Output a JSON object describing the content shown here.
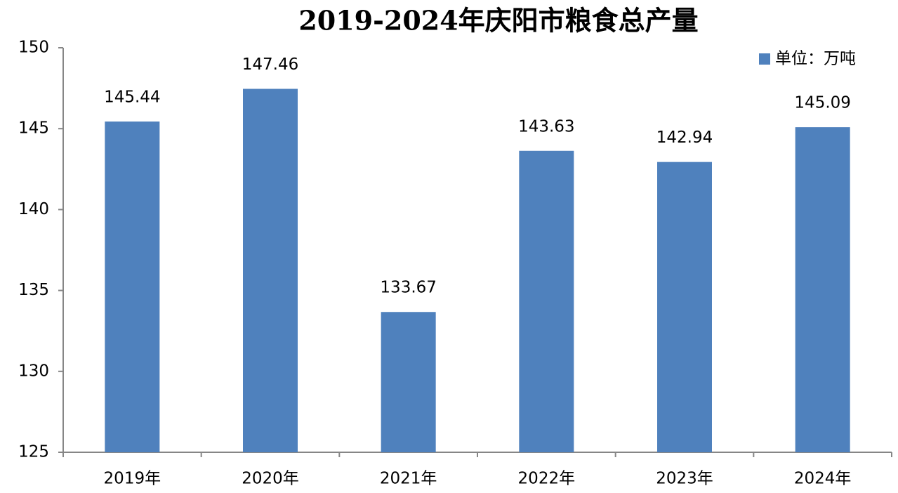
{
  "chart_data": {
    "type": "bar",
    "title": "2019-2024年庆阳市粮食总产量",
    "categories": [
      "2019年",
      "2020年",
      "2021年",
      "2022年",
      "2023年",
      "2024年"
    ],
    "series": [
      {
        "name": "单位：万吨",
        "color": "#4f81bd",
        "values": [
          145.44,
          147.46,
          133.67,
          143.63,
          142.94,
          145.09
        ]
      }
    ],
    "ylim": [
      125,
      150
    ],
    "yticks": [
      125,
      130,
      135,
      140,
      145,
      150
    ],
    "grid": false,
    "legend": "top-right"
  }
}
